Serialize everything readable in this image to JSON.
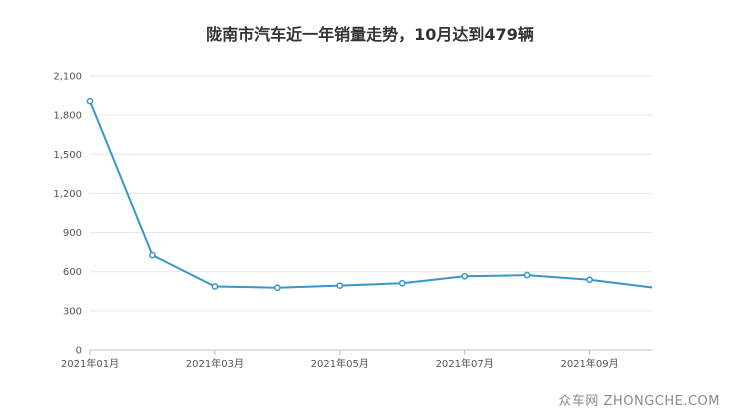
{
  "chart_data": {
    "type": "line",
    "title": "陇南市汽车近一年销量走势，10月达到479辆",
    "xlabel": "",
    "ylabel": "",
    "x": [
      "2021年01月",
      "2021年02月",
      "2021年03月",
      "2021年04月",
      "2021年05月",
      "2021年06月",
      "2021年07月",
      "2021年08月",
      "2021年09月",
      "2021年10月"
    ],
    "x_tick_labels": [
      "2021年01月",
      "2021年03月",
      "2021年05月",
      "2021年07月",
      "2021年09月"
    ],
    "series": [
      {
        "values": [
          1907,
          727,
          487,
          477,
          493,
          512,
          565,
          574,
          538,
          479
        ],
        "color": "#3a96c8"
      }
    ],
    "ylim": [
      0,
      2100
    ],
    "y_ticks": [
      0,
      300,
      600,
      900,
      1200,
      1500,
      1800,
      2100
    ],
    "y_tick_labels": [
      "0",
      "300",
      "600",
      "900",
      "1,200",
      "1,500",
      "1,800",
      "2,100"
    ],
    "grid": true,
    "legend": "none",
    "gridline_color": "#e6e6e6",
    "axis_color": "#bfbfbf"
  },
  "watermark": "众车网 ZHONGCHE.COM"
}
